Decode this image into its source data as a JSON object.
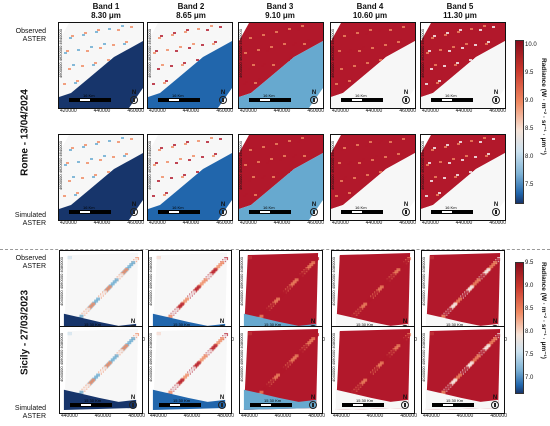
{
  "bands": [
    {
      "name": "Band 1",
      "wavelength": "8.30 μm"
    },
    {
      "name": "Band 2",
      "wavelength": "8.65 μm"
    },
    {
      "name": "Band 3",
      "wavelength": "9.10 μm"
    },
    {
      "name": "Band 4",
      "wavelength": "10.60 μm"
    },
    {
      "name": "Band 5",
      "wavelength": "11.30 μm"
    }
  ],
  "rome": {
    "title": "Rome - 13/04/2024",
    "observed_label": "Observed ASTER",
    "simulated_label": "Simulated ASTER",
    "scale_text": "16 Km",
    "x_ticks": [
      "420000",
      "440000",
      "460000"
    ],
    "y_ticks": [
      "4640000",
      "4620000",
      "4600000"
    ],
    "colorbar": {
      "ticks": [
        "10.0",
        "9.5",
        "9.0",
        "8.5",
        "8.0",
        "7.5"
      ],
      "label": "Radiance (W · m⁻² · sr⁻¹ · μm⁻¹)"
    }
  },
  "sicily": {
    "title": "Sicily - 27/03/2023",
    "observed_label": "Observed ASTER",
    "simulated_label": "Simulated ASTER",
    "scale_text": "15 30 Km",
    "x_ticks": [
      "440000",
      "460000",
      "480000"
    ],
    "y_ticks": [
      "4080000",
      "4060000",
      "4040000"
    ],
    "colorbar": {
      "ticks": [
        "9.5",
        "9.0",
        "8.5",
        "8.0",
        "7.5",
        "7.0"
      ],
      "label": "Radiance (W · m⁻² · sr⁻¹ · μm⁻¹)"
    }
  },
  "north_label": "N",
  "colors": {
    "hot": "#b2182b",
    "warm": "#ef8a62",
    "neutral": "#f7f7f7",
    "cool": "#67a9cf",
    "cold": "#2166ac",
    "deep": "#17356b"
  }
}
